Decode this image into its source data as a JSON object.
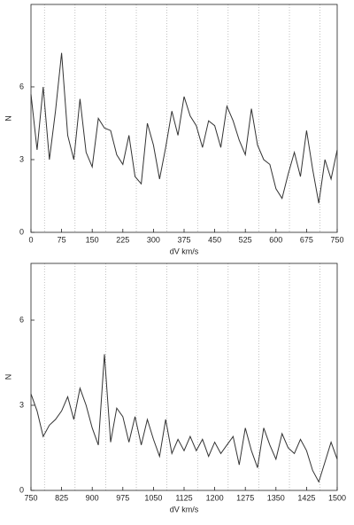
{
  "chart_data": [
    {
      "type": "line",
      "xlabel": "dV km/s",
      "ylabel": "N",
      "x": [
        0,
        15,
        30,
        45,
        60,
        75,
        90,
        105,
        120,
        135,
        150,
        165,
        180,
        195,
        210,
        225,
        240,
        255,
        270,
        285,
        300,
        315,
        330,
        345,
        360,
        375,
        390,
        405,
        420,
        435,
        450,
        465,
        480,
        495,
        510,
        525,
        540,
        555,
        570,
        585,
        600,
        615,
        630,
        645,
        660,
        675,
        690,
        705,
        720,
        735,
        750
      ],
      "values": [
        5.7,
        3.4,
        6.0,
        3.0,
        5.0,
        7.4,
        4.0,
        3.0,
        5.5,
        3.3,
        2.7,
        4.7,
        4.3,
        4.2,
        3.2,
        2.8,
        4.0,
        2.3,
        2.0,
        4.5,
        3.6,
        2.2,
        3.5,
        5.0,
        4.0,
        5.6,
        4.8,
        4.4,
        3.5,
        4.6,
        4.4,
        3.5,
        5.2,
        4.6,
        3.8,
        3.2,
        5.1,
        3.6,
        3.0,
        2.8,
        1.8,
        1.4,
        2.4,
        3.3,
        2.3,
        4.2,
        2.6,
        1.2,
        3.0,
        2.2,
        3.4
      ],
      "color": "#333333",
      "xlim": [
        0,
        750
      ],
      "xticks": [
        0,
        75,
        150,
        225,
        300,
        375,
        450,
        525,
        600,
        675,
        750
      ],
      "ylim": [
        0,
        9.4
      ],
      "yticks": [
        0,
        3,
        6
      ],
      "vlines": [
        33,
        108,
        183,
        258,
        333,
        408,
        483,
        558,
        633,
        708
      ]
    },
    {
      "type": "line",
      "xlabel": "dV km/s",
      "ylabel": "N",
      "x": [
        750,
        765,
        780,
        795,
        810,
        825,
        840,
        855,
        870,
        885,
        900,
        915,
        930,
        945,
        960,
        975,
        990,
        1005,
        1020,
        1035,
        1050,
        1065,
        1080,
        1095,
        1110,
        1125,
        1140,
        1155,
        1170,
        1185,
        1200,
        1215,
        1230,
        1245,
        1260,
        1275,
        1290,
        1305,
        1320,
        1335,
        1350,
        1365,
        1380,
        1395,
        1410,
        1425,
        1440,
        1455,
        1470,
        1485,
        1500
      ],
      "values": [
        3.4,
        2.8,
        1.9,
        2.3,
        2.5,
        2.8,
        3.3,
        2.5,
        3.6,
        3.0,
        2.2,
        1.6,
        4.8,
        1.7,
        2.9,
        2.6,
        1.7,
        2.6,
        1.6,
        2.5,
        1.8,
        1.2,
        2.5,
        1.3,
        1.8,
        1.4,
        1.9,
        1.4,
        1.8,
        1.2,
        1.7,
        1.3,
        1.6,
        1.9,
        0.9,
        2.2,
        1.4,
        0.8,
        2.2,
        1.6,
        1.1,
        2.0,
        1.5,
        1.3,
        1.8,
        1.4,
        0.7,
        0.3,
        1.0,
        1.7,
        1.1
      ],
      "color": "#333333",
      "xlim": [
        750,
        1500
      ],
      "xticks": [
        750,
        825,
        900,
        975,
        1050,
        1125,
        1200,
        1275,
        1350,
        1425,
        1500
      ],
      "ylim": [
        0,
        8
      ],
      "yticks": [
        0,
        3,
        6
      ],
      "vlines": [
        783,
        858,
        933,
        1008,
        1083,
        1158,
        1233,
        1308,
        1383,
        1458
      ]
    }
  ]
}
